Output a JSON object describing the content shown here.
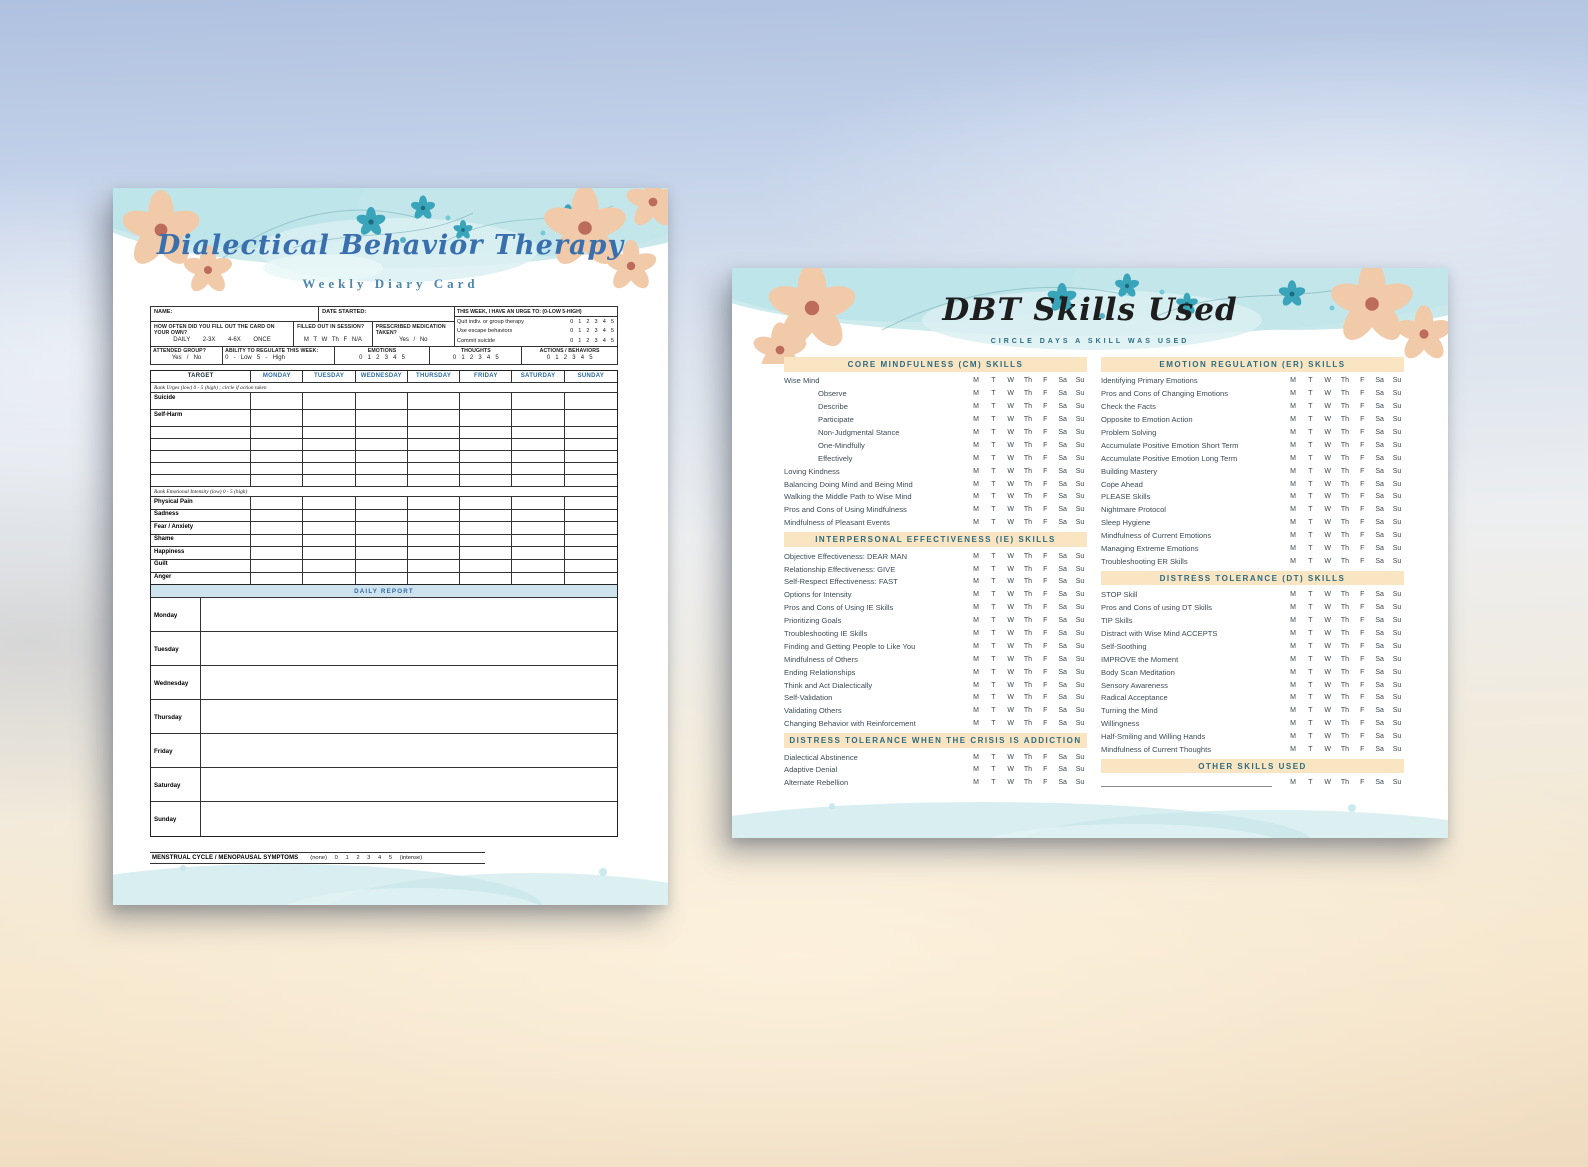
{
  "colors": {
    "title-blue": "#3a6fae",
    "subtitle-blue": "#4e86ad",
    "header-teal": "#2d6b80",
    "bar-peach": "#fae5c3",
    "daily-bar-blue": "#cfe3ee",
    "table-head-blue": "#2e6da4"
  },
  "page1": {
    "title": "Dialectical Behavior Therapy",
    "subtitle": "Weekly Diary Card",
    "form": {
      "name_label": "NAME:",
      "date_label": "DATE STARTED:",
      "urge_header": "THIS WEEK, I HAVE AN URGE TO: (0-LOW 5-HIGH)",
      "urges": [
        {
          "label": "Quit indiv. or group therapy",
          "scale": "0 1 2 3 4 5"
        },
        {
          "label": "Use escape behaviors",
          "scale": "0 1 2 3 4 5"
        },
        {
          "label": "Commit suicide",
          "scale": "0 1 2 3 4 5"
        }
      ],
      "how_often": {
        "label": "HOW OFTEN DID YOU FILL OUT THE CARD ON YOUR OWN?",
        "options": "DAILY 2-3X 4-6X ONCE"
      },
      "session": {
        "label": "FILLED OUT IN SESSION?",
        "options": "M T W Th F N/A"
      },
      "medication": {
        "label": "PRESCRIBED MEDICATION TAKEN?",
        "options": "Yes / No"
      },
      "attended": {
        "label": "ATTENDED GROUP?",
        "options": "Yes / No"
      },
      "regulate": {
        "label": "ABILITY TO REGULATE THIS WEEK:",
        "options": "0 - Low 5 - High"
      },
      "emotions": {
        "label": "EMOTIONS",
        "scale": "0 1 2 3 4 5"
      },
      "thoughts": {
        "label": "THOUGHTS",
        "scale": "0 1 2 3 4 5"
      },
      "actions": {
        "label": "ACTIONS / BEHAVIORS",
        "scale": "0 1 2 3 4 5"
      }
    },
    "tracker": {
      "columns": [
        "TARGET",
        "MONDAY",
        "TUESDAY",
        "WEDNESDAY",
        "THURSDAY",
        "FRIDAY",
        "SATURDAY",
        "SUNDAY"
      ],
      "urges_note": "Rank Urges (low) 0 - 5 (high) ; circle if action taken",
      "urge_rows": [
        "Suicide",
        "Self-Harm",
        "",
        "",
        "",
        "",
        ""
      ],
      "intensity_note": "Rank Emotional Intensity (low) 0 - 5 (high)",
      "intensity_rows": [
        "Physical Pain",
        "Sadness",
        "Fear / Anxiety",
        "Shame",
        "Happiness",
        "Guilt",
        "Anger"
      ]
    },
    "daily_report": {
      "header": "DAILY REPORT",
      "days": [
        "Monday",
        "Tuesday",
        "Wednesday",
        "Thursday",
        "Friday",
        "Saturday",
        "Sunday"
      ]
    },
    "footer": {
      "label": "MENSTRUAL CYCLE / MENOPAUSAL SYMPTOMS",
      "scale": "(none) 0 1 2 3 4 5 (intense)"
    }
  },
  "page2": {
    "title": "DBT Skills Used",
    "subtitle": "CIRCLE DAYS A SKILL WAS USED",
    "day_labels": [
      "M",
      "T",
      "W",
      "Th",
      "F",
      "Sa",
      "Su"
    ],
    "columns": [
      [
        {
          "header": "CORE MINDFULNESS (CM) SKILLS",
          "items": [
            "Wise Mind",
            {
              "label": "Observe",
              "indent": true
            },
            {
              "label": "Describe",
              "indent": true
            },
            {
              "label": "Participate",
              "indent": true
            },
            {
              "label": "Non-Judgmental Stance",
              "indent": true
            },
            {
              "label": "One-Mindfully",
              "indent": true
            },
            {
              "label": "Effectively",
              "indent": true
            },
            "Loving Kindness",
            "Balancing Doing Mind and Being Mind",
            "Walking the Middle Path to Wise Mind",
            "Pros and Cons of Using Mindfulness",
            "Mindfulness of Pleasant Events"
          ]
        },
        {
          "header": "INTERPERSONAL EFFECTIVENESS (IE) SKILLS",
          "items": [
            "Objective Effectiveness: DEAR MAN",
            "Relationship Effectiveness: GIVE",
            "Self-Respect Effectiveness: FAST",
            "Options for Intensity",
            "Pros and Cons of Using IE Skills",
            "Prioritizing Goals",
            "Troubleshooting IE Skills",
            "Finding and Getting People to Like You",
            "Mindfulness of Others",
            "Ending Relationships",
            "Think and Act Dialectically",
            "Self-Validation",
            "Validating Others",
            "Changing Behavior with Reinforcement"
          ]
        },
        {
          "header": "DISTRESS TOLERANCE WHEN THE CRISIS IS ADDICTION",
          "items": [
            "Dialectical Abstinence",
            "Adaptive Denial",
            "Alternate Rebellion"
          ]
        }
      ],
      [
        {
          "header": "EMOTION REGULATION (ER) SKILLS",
          "items": [
            "Identifying Primary Emotions",
            "Pros and Cons of Changing Emotions",
            "Check the Facts",
            "Opposite to Emotion Action",
            "Problem Solving",
            "Accumulate Positive Emotion Short Term",
            "Accumulate Positive Emotion Long Term",
            "Building Mastery",
            "Cope Ahead",
            "PLEASE Skills",
            "Nightmare Protocol",
            "Sleep Hygiene",
            "Mindfulness of Current Emotions",
            "Managing Extreme Emotions",
            "Troubleshooting ER Skills"
          ]
        },
        {
          "header": "DISTRESS TOLERANCE (DT) SKILLS",
          "items": [
            "STOP Skill",
            "Pros and Cons of using DT Skills",
            "TIP Skills",
            "Distract with Wise Mind ACCEPTS",
            "Self-Soothing",
            "IMPROVE the Moment",
            "Body Scan Meditation",
            "Sensory Awareness",
            "Radical Acceptance",
            "Turning the Mind",
            "Willingness",
            "Half-Smiling and Willing Hands",
            "Mindfulness of Current Thoughts"
          ]
        },
        {
          "header": "OTHER SKILLS USED",
          "items": [
            {
              "blank": true
            }
          ]
        }
      ]
    ]
  }
}
